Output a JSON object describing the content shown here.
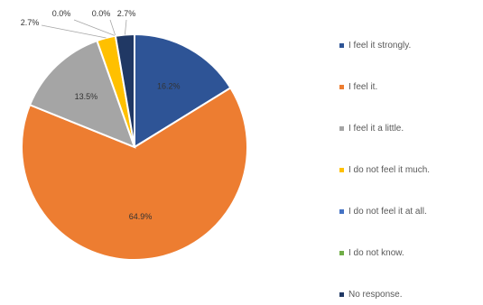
{
  "chart_data": {
    "type": "pie",
    "slices": [
      {
        "label": "I feel it strongly.",
        "value": 16.2,
        "value_label": "16.2%",
        "color": "#2e5496"
      },
      {
        "label": "I feel it.",
        "value": 64.9,
        "value_label": "64.9%",
        "color": "#ed7d31"
      },
      {
        "label": "I feel it a little.",
        "value": 13.5,
        "value_label": "13.5%",
        "color": "#a5a5a5"
      },
      {
        "label": "I do not feel it much.",
        "value": 2.7,
        "value_label": "2.7%",
        "color": "#ffc000"
      },
      {
        "label": "I do not feel it at all.",
        "value": 0.0,
        "value_label": "0.0%",
        "color": "#4472c4"
      },
      {
        "label": "I do not know.",
        "value": 0.0,
        "value_label": "0.0%",
        "color": "#70ad47"
      },
      {
        "label": "No response.",
        "value": 2.7,
        "value_label": "2.7%",
        "color": "#203864"
      }
    ],
    "legend_position": "right"
  }
}
